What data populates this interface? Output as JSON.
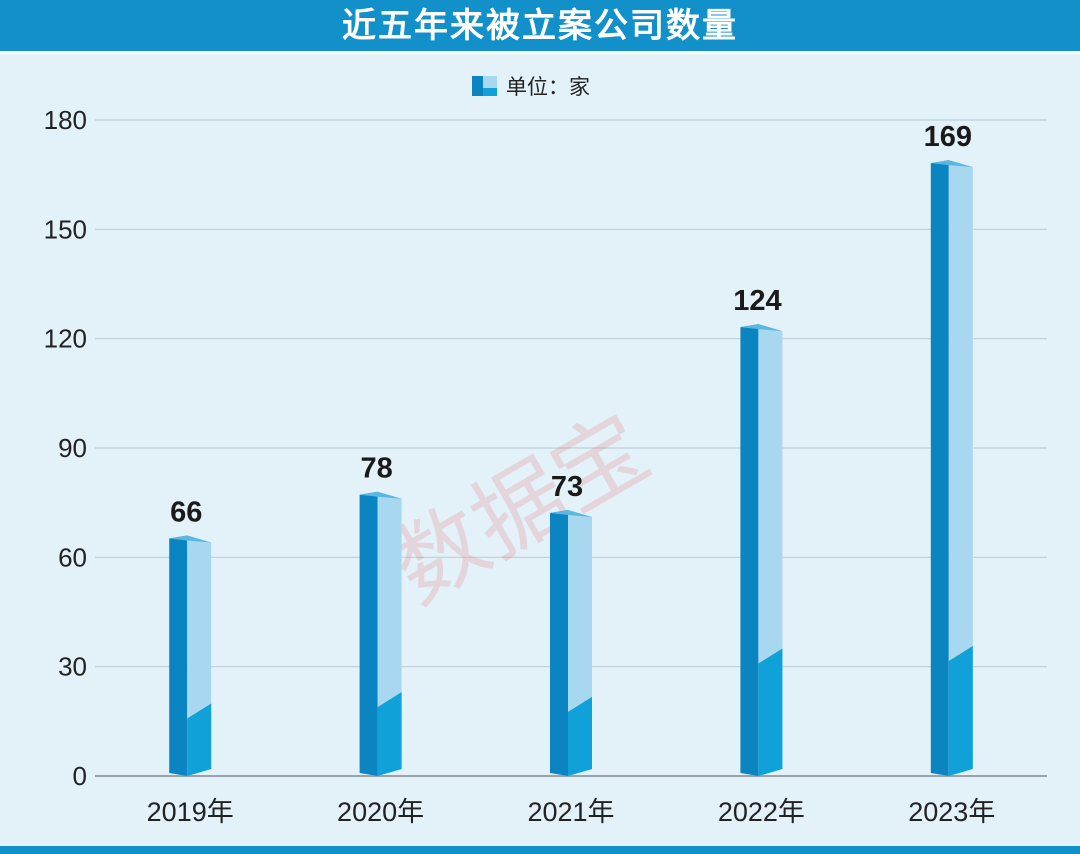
{
  "chart_data": {
    "type": "bar",
    "title": "近五年来被立案公司数量",
    "unit_label": "单位：家",
    "categories": [
      "2019年",
      "2020年",
      "2021年",
      "2022年",
      "2023年"
    ],
    "series": [
      {
        "values": [
          66,
          78,
          73,
          124,
          169
        ]
      }
    ],
    "ylim": [
      0,
      180
    ],
    "yticks": [
      0,
      30,
      60,
      90,
      120,
      150,
      180
    ],
    "grid": true,
    "legend_position": "top-center",
    "colors": {
      "bar_front_dark": "#0a85c2",
      "bar_side_light": "#a8d8ef",
      "bar_side_lower": "#10a1d8",
      "title_band": "#1190c9",
      "background": "#e3f1f9"
    }
  },
  "watermark": "数据宝"
}
